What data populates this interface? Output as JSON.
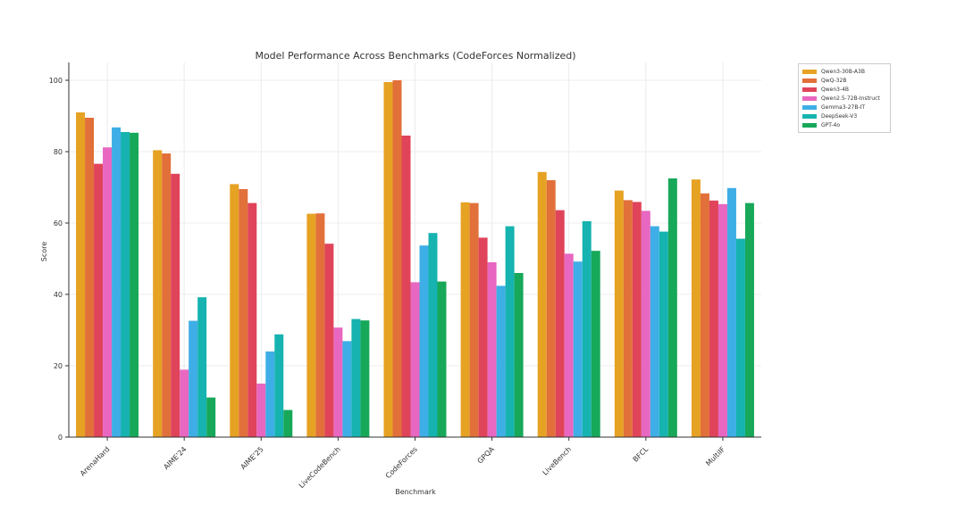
{
  "chart_data": {
    "type": "bar",
    "title": "Model Performance Across Benchmarks (CodeForces Normalized)",
    "xlabel": "Benchmark",
    "ylabel": "Score",
    "ylim": [
      0,
      105
    ],
    "yticks": [
      0,
      20,
      40,
      60,
      80,
      100
    ],
    "grid": true,
    "legend_position": "top-right-outside",
    "categories": [
      "ArenaHard",
      "AIME'24",
      "AIME'25",
      "LiveCodeBench",
      "CodeForces",
      "GPQA",
      "LiveBench",
      "BFCL",
      "MultiIF"
    ],
    "series": [
      {
        "name": "Qwen3-30B-A3B",
        "color": "#e6a223",
        "values": [
          91.0,
          80.4,
          70.9,
          62.6,
          99.5,
          65.8,
          74.3,
          69.1,
          72.2
        ]
      },
      {
        "name": "QwQ-32B",
        "color": "#e2703a",
        "values": [
          89.5,
          79.5,
          69.5,
          62.7,
          100.0,
          65.6,
          72.0,
          66.4,
          68.3
        ]
      },
      {
        "name": "Qwen3-4B",
        "color": "#e0445a",
        "values": [
          76.6,
          73.8,
          65.6,
          54.2,
          84.5,
          55.9,
          63.6,
          65.9,
          66.3
        ]
      },
      {
        "name": "Qwen2.5-72B-Instruct",
        "color": "#e767c1",
        "values": [
          81.2,
          18.9,
          15.0,
          30.7,
          43.4,
          49.0,
          51.4,
          63.4,
          65.3
        ]
      },
      {
        "name": "Gemma3-27B-IT",
        "color": "#3eaee6",
        "values": [
          86.8,
          32.6,
          24.0,
          26.9,
          53.7,
          42.4,
          49.2,
          59.1,
          69.8
        ]
      },
      {
        "name": "DeepSeek-V3",
        "color": "#16b3b0",
        "values": [
          85.5,
          39.2,
          28.8,
          33.1,
          57.2,
          59.1,
          60.5,
          57.6,
          55.6
        ]
      },
      {
        "name": "GPT-4o",
        "color": "#17a85a",
        "values": [
          85.3,
          11.1,
          7.6,
          32.7,
          43.6,
          46.0,
          52.2,
          72.5,
          65.6
        ]
      }
    ]
  }
}
